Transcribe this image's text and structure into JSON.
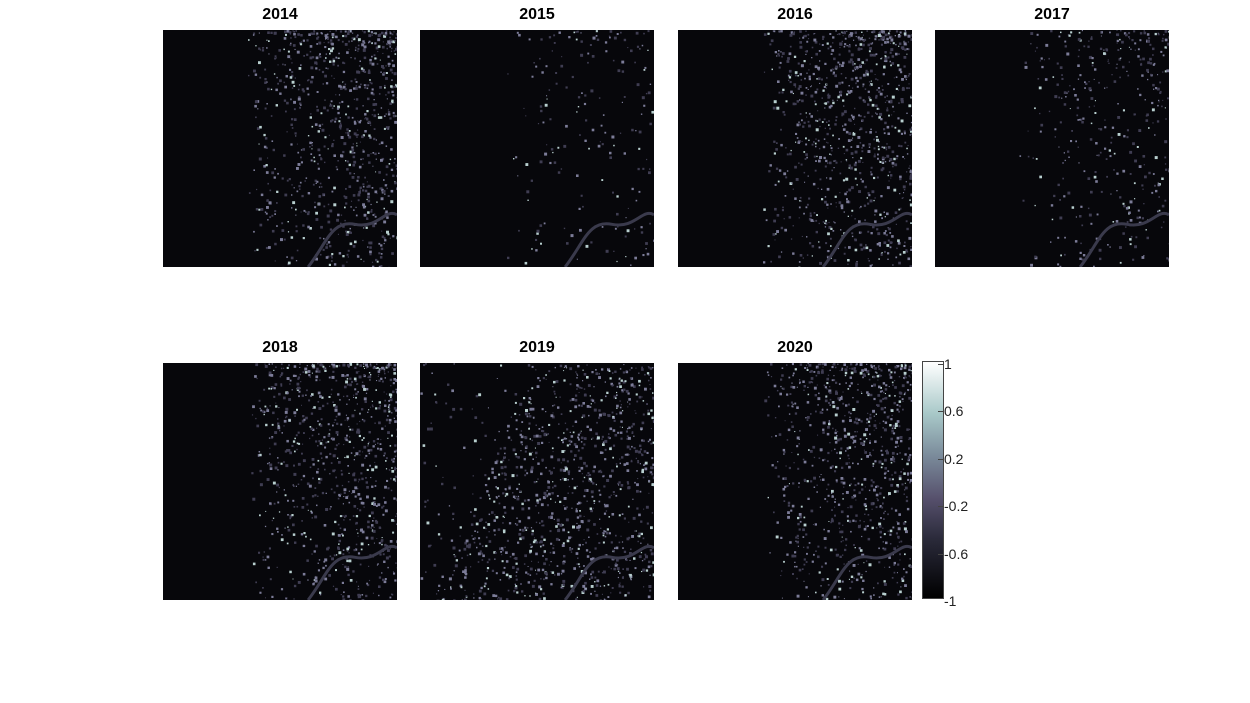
{
  "panels": [
    {
      "title": "2014",
      "intensity": 0.55
    },
    {
      "title": "2015",
      "intensity": 0.12
    },
    {
      "title": "2016",
      "intensity": 0.6
    },
    {
      "title": "2017",
      "intensity": 0.25
    },
    {
      "title": "2018",
      "intensity": 0.55
    },
    {
      "title": "2019",
      "intensity": 0.95
    },
    {
      "title": "2020",
      "intensity": 0.55
    }
  ],
  "colorbar": {
    "ticks": [
      "1",
      "0.6",
      "0.2",
      "-0.2",
      "-0.6",
      "-1"
    ],
    "colors": [
      "#000000",
      "#2a2a3a",
      "#56506c",
      "#7a8a9a",
      "#a8c8c8",
      "#ffffff"
    ]
  }
}
